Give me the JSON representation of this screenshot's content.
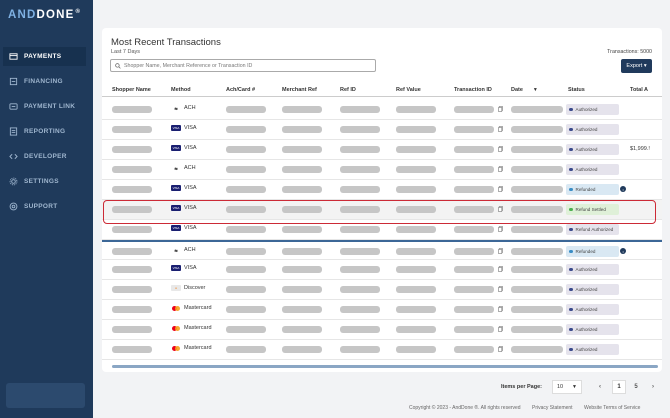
{
  "brand": {
    "logo_and": "AND",
    "logo_done": "DONE",
    "logo_mark": "®"
  },
  "sidebar": {
    "items": [
      {
        "label": "PAYMENTS",
        "icon": "payments-icon",
        "active": true
      },
      {
        "label": "FINANCING",
        "icon": "financing-icon",
        "active": false
      },
      {
        "label": "PAYMENT LINK",
        "icon": "link-icon",
        "active": false
      },
      {
        "label": "REPORTING",
        "icon": "reporting-icon",
        "active": false
      },
      {
        "label": "DEVELOPER",
        "icon": "code-icon",
        "active": false
      },
      {
        "label": "SETTINGS",
        "icon": "gear-icon",
        "active": false
      },
      {
        "label": "SUPPORT",
        "icon": "support-icon",
        "active": false
      }
    ]
  },
  "main": {
    "title": "Most Recent Transactions",
    "subtitle": "Last 7 Days",
    "transactions_count": "Transactions: 5000",
    "search_placeholder": "Shopper Name, Merchant Reference or Transaction ID",
    "export_label": "Export ▾"
  },
  "table": {
    "columns": [
      "Shopper Name",
      "Method",
      "Ach/Card #",
      "Merchant Ref",
      "Ref ID",
      "Ref Value",
      "Transaction ID",
      "Date",
      "Status",
      "Total A"
    ],
    "date_sort_icon": "▼",
    "rows": [
      {
        "method": "ACH",
        "method_icon": "ach",
        "status": "Authorized",
        "status_kind": "authorized",
        "info": false,
        "amount": ""
      },
      {
        "method": "VISA",
        "method_icon": "visa",
        "status": "Authorized",
        "status_kind": "authorized",
        "info": false,
        "amount": ""
      },
      {
        "method": "VISA",
        "method_icon": "visa",
        "status": "Authorized",
        "status_kind": "authorized",
        "info": false,
        "amount": "$1,999.!"
      },
      {
        "method": "ACH",
        "method_icon": "ach",
        "status": "Authorized",
        "status_kind": "authorized",
        "info": false,
        "amount": ""
      },
      {
        "method": "VISA",
        "method_icon": "visa",
        "status": "Refunded",
        "status_kind": "refunded",
        "info": true,
        "amount": ""
      },
      {
        "method": "VISA",
        "method_icon": "visa",
        "status": "Refund Settled",
        "status_kind": "settled",
        "info": false,
        "amount": "",
        "highlight": true
      },
      {
        "method": "VISA",
        "method_icon": "visa",
        "status": "Refund Authorized",
        "status_kind": "authorized",
        "info": false,
        "amount": ""
      },
      {
        "method": "ACH",
        "method_icon": "ach",
        "status": "Refunded",
        "status_kind": "refunded",
        "info": true,
        "amount": ""
      },
      {
        "method": "VISA",
        "method_icon": "visa",
        "status": "Authorized",
        "status_kind": "authorized",
        "info": false,
        "amount": ""
      },
      {
        "method": "Discover",
        "method_icon": "discover",
        "status": "Authorized",
        "status_kind": "authorized",
        "info": false,
        "amount": ""
      },
      {
        "method": "Mastercard",
        "method_icon": "mc",
        "status": "Authorized",
        "status_kind": "authorized",
        "info": false,
        "amount": ""
      },
      {
        "method": "Mastercard",
        "method_icon": "mc",
        "status": "Authorized",
        "status_kind": "authorized",
        "info": false,
        "amount": ""
      },
      {
        "method": "Mastercard",
        "method_icon": "mc",
        "status": "Authorized",
        "status_kind": "authorized",
        "info": false,
        "amount": ""
      }
    ]
  },
  "pagination": {
    "label": "Items per Page:",
    "per_page": "10",
    "per_page_caret": "▼",
    "prev": "‹",
    "current_page": "1",
    "last_page": "5",
    "next": "›"
  },
  "footer": {
    "copyright": "Copyright © 2023 - AndDone ®. All rights reserved",
    "privacy": "Privacy Statement",
    "terms": "Website Terms of Service"
  },
  "colors": {
    "sidebar": "#1f3a5b",
    "accent": "#203a5c",
    "authorized_dot": "#3b4a8c",
    "refunded_dot": "#3a8dc5",
    "settled_dot": "#4caf50",
    "highlight_border": "#cc2a36"
  }
}
